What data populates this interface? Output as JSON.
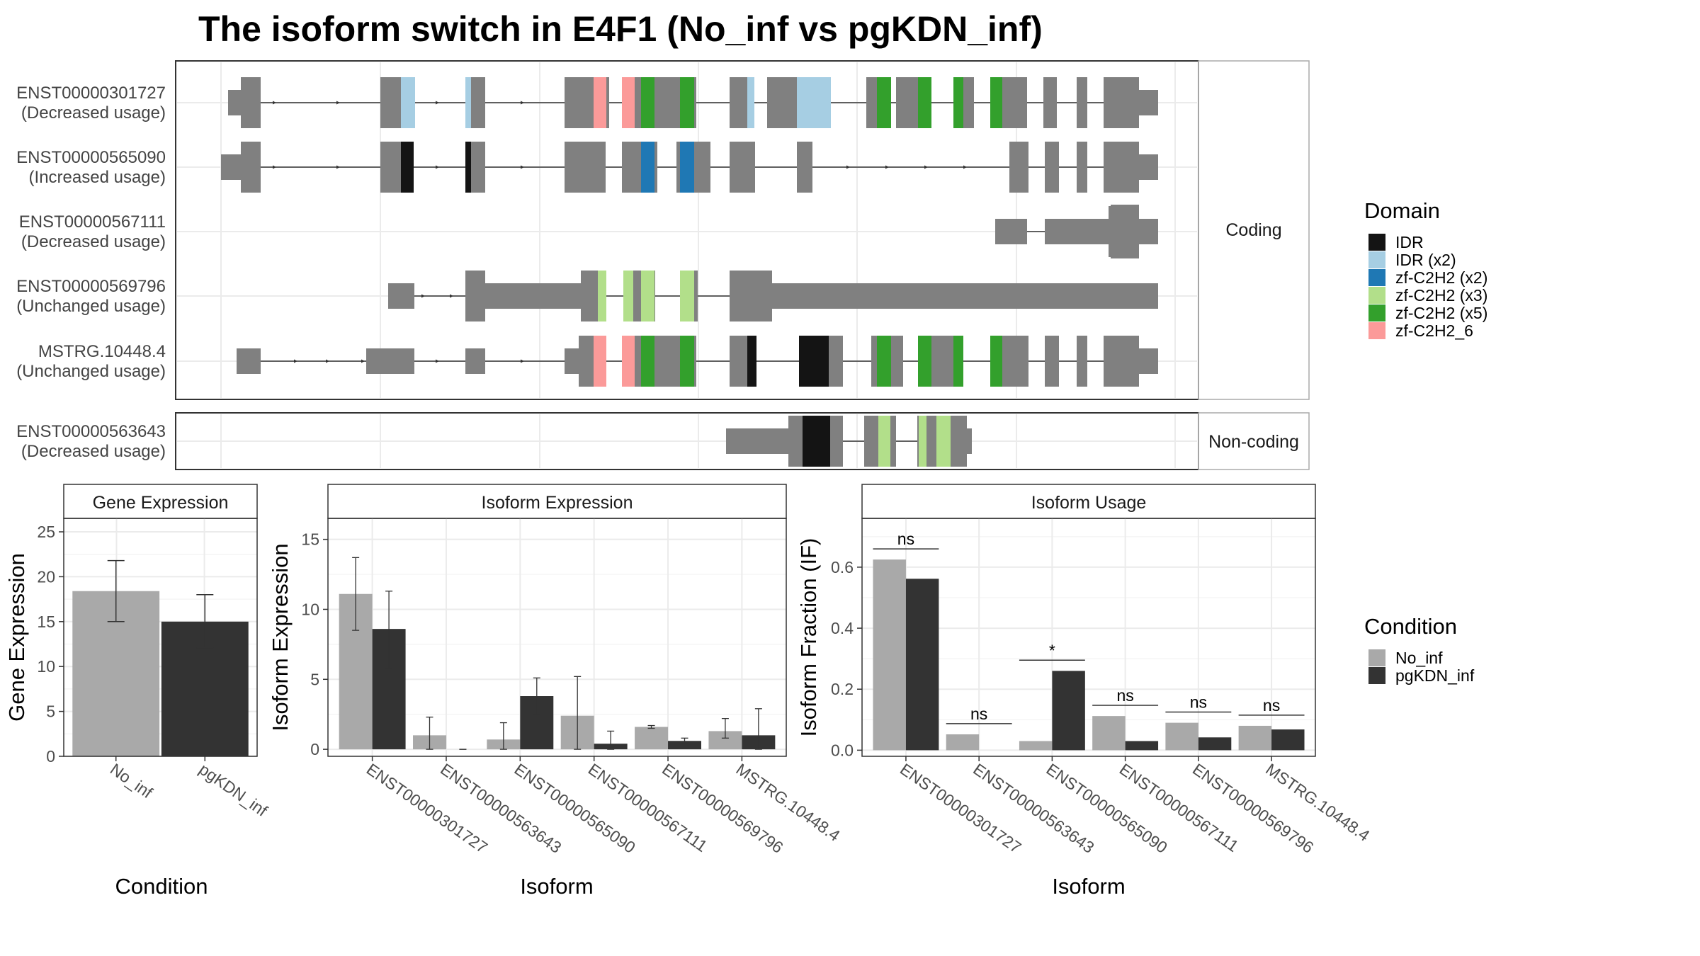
{
  "title": "The isoform switch in E4F1 (No_inf vs pgKDN_inf)",
  "colors": {
    "no_inf": "#A9A9A9",
    "pgkdn_inf": "#333333",
    "exon": "#808080",
    "domain": {
      "IDR": "#141414",
      "IDR (x2)": "#A6CEE3",
      "zf-C2H2 (x2)": "#1F78B4",
      "zf-C2H2 (x3)": "#B2DF8A",
      "zf-C2H2 (x5)": "#33A02C",
      "zf-C2H2_6": "#FB9A99"
    }
  },
  "structure": {
    "facets": [
      "Coding",
      "Non-coding"
    ],
    "isoforms": [
      {
        "id": "ENST00000301727",
        "usage": "(Decreased usage)",
        "facet": "Coding"
      },
      {
        "id": "ENST00000565090",
        "usage": "(Increased usage)",
        "facet": "Coding"
      },
      {
        "id": "ENST00000567111",
        "usage": "(Decreased usage)",
        "facet": "Coding"
      },
      {
        "id": "ENST00000569796",
        "usage": "(Unchanged usage)",
        "facet": "Coding"
      },
      {
        "id": "MSTRG.10448.4",
        "usage": "(Unchanged usage)",
        "facet": "Coding"
      },
      {
        "id": "ENST00000563643",
        "usage": "(Decreased usage)",
        "facet": "Non-coding"
      }
    ]
  },
  "legends": {
    "domain_title": "Domain",
    "domain_items": [
      "IDR",
      "IDR (x2)",
      "zf-C2H2 (x2)",
      "zf-C2H2 (x3)",
      "zf-C2H2 (x5)",
      "zf-C2H2_6"
    ],
    "condition_title": "Condition",
    "condition_items": [
      "No_inf",
      "pgKDN_inf"
    ]
  },
  "chart_data": [
    {
      "type": "bar",
      "title": "Gene Expression",
      "xlabel": "Condition",
      "ylabel": "Gene Expression",
      "categories": [
        "No_inf",
        "pgKDN_inf"
      ],
      "values": [
        18.4,
        15.0
      ],
      "errors": [
        [
          15.0,
          21.8
        ],
        [
          12.1,
          18.0
        ]
      ],
      "ylim": [
        0,
        26.5
      ],
      "yticks": [
        0,
        5,
        10,
        15,
        20,
        25
      ]
    },
    {
      "type": "bar",
      "title": "Isoform Expression",
      "xlabel": "Isoform",
      "ylabel": "Isoform Expression",
      "categories": [
        "ENST00000301727",
        "ENST00000563643",
        "ENST00000565090",
        "ENST00000567111",
        "ENST00000569796",
        "MSTRG.10448.4"
      ],
      "series": [
        {
          "name": "No_inf",
          "values": [
            11.1,
            1.0,
            0.7,
            2.4,
            1.6,
            1.3
          ],
          "errors": [
            [
              8.5,
              13.7
            ],
            [
              0.0,
              2.3
            ],
            [
              0.0,
              1.9
            ],
            [
              0.0,
              5.2
            ],
            [
              1.5,
              1.7
            ],
            [
              0.8,
              2.2
            ]
          ]
        },
        {
          "name": "pgKDN_inf",
          "values": [
            8.6,
            0.0,
            3.8,
            0.4,
            0.6,
            1.0
          ],
          "errors": [
            [
              5.8,
              11.3
            ],
            [
              0.0,
              0.0
            ],
            [
              2.5,
              5.1
            ],
            [
              0.0,
              1.3
            ],
            [
              0.4,
              0.8
            ],
            [
              0.0,
              2.9
            ]
          ]
        }
      ],
      "ylim": [
        -0.5,
        16.5
      ],
      "yticks": [
        0,
        5,
        10,
        15
      ]
    },
    {
      "type": "bar",
      "title": "Isoform Usage",
      "xlabel": "Isoform",
      "ylabel": "Isoform Fraction (IF)",
      "categories": [
        "ENST00000301727",
        "ENST00000563643",
        "ENST00000565090",
        "ENST00000567111",
        "ENST00000569796",
        "MSTRG.10448.4"
      ],
      "series": [
        {
          "name": "No_inf",
          "values": [
            0.625,
            0.052,
            0.03,
            0.112,
            0.09,
            0.08
          ]
        },
        {
          "name": "pgKDN_inf",
          "values": [
            0.562,
            0.0,
            0.26,
            0.03,
            0.042,
            0.068
          ]
        }
      ],
      "significance": [
        "ns",
        "ns",
        "*",
        "ns",
        "ns",
        "ns"
      ],
      "ylim": [
        -0.02,
        0.76
      ],
      "yticks": [
        0.0,
        0.2,
        0.4,
        0.6
      ],
      "yticklabels": [
        "0.0",
        "0.2",
        "0.4",
        "0.6"
      ]
    }
  ]
}
